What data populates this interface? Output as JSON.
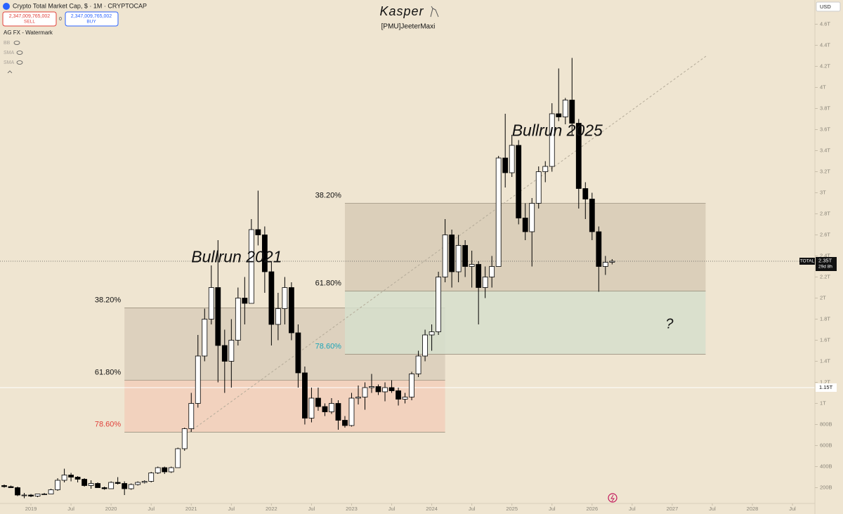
{
  "chart_data": {
    "type": "candlestick",
    "header": {
      "title": "Crypto Total Market Cap, $ · 1M · CRYPTOCAP",
      "sell_price": "2,347,009,765,002",
      "sell": "SELL",
      "spread": "0",
      "buy_price": "2,347,009,765,002",
      "buy": "BUY",
      "currency": "USD"
    },
    "indicators": [
      "AG FX - Watermark",
      "BB",
      "SMA",
      "SMA"
    ],
    "watermark": {
      "title": "Kasper",
      "subtitle": "[PMU]JeeterMaxi"
    },
    "annotations": [
      {
        "text": "Bullrun 2021",
        "x": "2021-01",
        "value": 2.38
      },
      {
        "text": "Bullrun 2025",
        "x": "2025-01",
        "value": 3.58
      },
      {
        "text": "?",
        "x": "2026-12",
        "value": 1.75
      }
    ],
    "up_color": "#ffffff",
    "down_color": "#000000",
    "x": [
      "2018-09",
      "2018-10",
      "2018-11",
      "2018-12",
      "2019-01",
      "2019-02",
      "2019-03",
      "2019-04",
      "2019-05",
      "2019-06",
      "2019-07",
      "2019-08",
      "2019-09",
      "2019-10",
      "2019-11",
      "2019-12",
      "2020-01",
      "2020-02",
      "2020-03",
      "2020-04",
      "2020-05",
      "2020-06",
      "2020-07",
      "2020-08",
      "2020-09",
      "2020-10",
      "2020-11",
      "2020-12",
      "2021-01",
      "2021-02",
      "2021-03",
      "2021-04",
      "2021-05",
      "2021-06",
      "2021-07",
      "2021-08",
      "2021-09",
      "2021-10",
      "2021-11",
      "2021-12",
      "2022-01",
      "2022-02",
      "2022-03",
      "2022-04",
      "2022-05",
      "2022-06",
      "2022-07",
      "2022-08",
      "2022-09",
      "2022-10",
      "2022-11",
      "2022-12",
      "2023-01",
      "2023-02",
      "2023-03",
      "2023-04",
      "2023-05",
      "2023-06",
      "2023-07",
      "2023-08",
      "2023-09",
      "2023-10",
      "2023-11",
      "2023-12",
      "2024-01",
      "2024-02",
      "2024-03",
      "2024-04",
      "2024-05",
      "2024-06",
      "2024-07",
      "2024-08",
      "2024-09",
      "2024-10",
      "2024-11",
      "2024-12",
      "2025-01",
      "2025-02",
      "2025-03",
      "2025-04",
      "2025-05",
      "2025-06",
      "2025-07",
      "2025-08",
      "2025-09",
      "2025-10",
      "2025-11",
      "2025-12",
      "2026-01",
      "2026-02",
      "2026-03",
      "2026-04"
    ],
    "ohlc": [
      [
        0.22,
        0.23,
        0.2,
        0.21
      ],
      [
        0.21,
        0.22,
        0.2,
        0.2
      ],
      [
        0.2,
        0.21,
        0.12,
        0.13
      ],
      [
        0.13,
        0.15,
        0.1,
        0.13
      ],
      [
        0.13,
        0.14,
        0.11,
        0.12
      ],
      [
        0.12,
        0.14,
        0.11,
        0.14
      ],
      [
        0.14,
        0.15,
        0.13,
        0.14
      ],
      [
        0.14,
        0.19,
        0.14,
        0.18
      ],
      [
        0.18,
        0.29,
        0.17,
        0.27
      ],
      [
        0.27,
        0.38,
        0.25,
        0.32
      ],
      [
        0.32,
        0.34,
        0.26,
        0.3
      ],
      [
        0.3,
        0.31,
        0.25,
        0.28
      ],
      [
        0.28,
        0.29,
        0.21,
        0.22
      ],
      [
        0.22,
        0.27,
        0.19,
        0.24
      ],
      [
        0.24,
        0.25,
        0.2,
        0.2
      ],
      [
        0.2,
        0.21,
        0.18,
        0.19
      ],
      [
        0.19,
        0.26,
        0.19,
        0.25
      ],
      [
        0.25,
        0.3,
        0.23,
        0.24
      ],
      [
        0.24,
        0.26,
        0.13,
        0.19
      ],
      [
        0.19,
        0.24,
        0.18,
        0.23
      ],
      [
        0.23,
        0.26,
        0.22,
        0.25
      ],
      [
        0.25,
        0.27,
        0.24,
        0.26
      ],
      [
        0.26,
        0.35,
        0.25,
        0.34
      ],
      [
        0.34,
        0.4,
        0.33,
        0.39
      ],
      [
        0.39,
        0.4,
        0.33,
        0.35
      ],
      [
        0.35,
        0.4,
        0.34,
        0.39
      ],
      [
        0.39,
        0.58,
        0.39,
        0.57
      ],
      [
        0.57,
        0.77,
        0.55,
        0.76
      ],
      [
        0.76,
        1.1,
        0.73,
        1.0
      ],
      [
        1.0,
        1.65,
        0.96,
        1.45
      ],
      [
        1.45,
        1.9,
        1.4,
        1.8
      ],
      [
        1.8,
        2.31,
        1.75,
        2.1
      ],
      [
        2.1,
        2.55,
        1.2,
        1.55
      ],
      [
        1.55,
        1.7,
        1.1,
        1.4
      ],
      [
        1.4,
        1.8,
        1.15,
        1.6
      ],
      [
        1.6,
        2.1,
        1.55,
        2.0
      ],
      [
        2.0,
        2.2,
        1.75,
        1.95
      ],
      [
        1.95,
        2.75,
        1.95,
        2.65
      ],
      [
        2.65,
        3.02,
        2.5,
        2.6
      ],
      [
        2.6,
        2.68,
        2.05,
        2.25
      ],
      [
        2.25,
        2.35,
        1.55,
        1.75
      ],
      [
        1.75,
        2.05,
        1.6,
        1.9
      ],
      [
        1.9,
        2.2,
        1.75,
        2.1
      ],
      [
        2.1,
        2.15,
        1.6,
        1.67
      ],
      [
        1.67,
        1.75,
        1.15,
        1.29
      ],
      [
        1.29,
        1.35,
        0.8,
        0.86
      ],
      [
        0.86,
        1.15,
        0.82,
        1.05
      ],
      [
        1.05,
        1.15,
        0.93,
        0.97
      ],
      [
        0.97,
        1.0,
        0.88,
        0.92
      ],
      [
        0.92,
        1.05,
        0.9,
        1.0
      ],
      [
        1.0,
        1.03,
        0.75,
        0.84
      ],
      [
        0.84,
        0.88,
        0.77,
        0.79
      ],
      [
        0.79,
        1.1,
        0.78,
        1.05
      ],
      [
        1.05,
        1.17,
        0.99,
        1.06
      ],
      [
        1.06,
        1.2,
        0.94,
        1.15
      ],
      [
        1.15,
        1.28,
        1.1,
        1.16
      ],
      [
        1.16,
        1.18,
        1.08,
        1.11
      ],
      [
        1.11,
        1.2,
        1.02,
        1.15
      ],
      [
        1.15,
        1.22,
        1.1,
        1.12
      ],
      [
        1.12,
        1.15,
        0.98,
        1.04
      ],
      [
        1.04,
        1.1,
        1.0,
        1.06
      ],
      [
        1.06,
        1.3,
        1.03,
        1.28
      ],
      [
        1.28,
        1.5,
        1.25,
        1.45
      ],
      [
        1.45,
        1.7,
        1.4,
        1.65
      ],
      [
        1.65,
        1.75,
        1.5,
        1.68
      ],
      [
        1.68,
        2.25,
        1.65,
        2.2
      ],
      [
        2.2,
        2.75,
        2.15,
        2.6
      ],
      [
        2.6,
        2.65,
        2.1,
        2.25
      ],
      [
        2.25,
        2.6,
        2.15,
        2.5
      ],
      [
        2.5,
        2.55,
        2.2,
        2.3
      ],
      [
        2.3,
        2.45,
        2.1,
        2.32
      ],
      [
        2.32,
        2.35,
        1.75,
        2.1
      ],
      [
        2.1,
        2.3,
        2.0,
        2.2
      ],
      [
        2.2,
        2.4,
        2.1,
        2.3
      ],
      [
        2.3,
        3.35,
        2.3,
        3.33
      ],
      [
        3.33,
        3.75,
        3.05,
        3.19
      ],
      [
        3.19,
        3.55,
        3.15,
        3.45
      ],
      [
        3.45,
        3.5,
        2.7,
        2.76
      ],
      [
        2.76,
        2.9,
        2.55,
        2.63
      ],
      [
        2.63,
        2.95,
        2.3,
        2.9
      ],
      [
        2.9,
        3.25,
        2.85,
        3.2
      ],
      [
        3.2,
        3.3,
        3.1,
        3.25
      ],
      [
        3.25,
        3.85,
        3.2,
        3.75
      ],
      [
        3.75,
        4.18,
        3.68,
        3.72
      ],
      [
        3.72,
        3.9,
        3.65,
        3.88
      ],
      [
        3.88,
        4.28,
        3.55,
        3.66
      ],
      [
        3.66,
        3.7,
        2.85,
        3.04
      ],
      [
        3.04,
        3.1,
        2.75,
        2.94
      ],
      [
        2.94,
        3.0,
        2.55,
        2.63
      ],
      [
        2.63,
        2.68,
        2.06,
        2.3
      ],
      [
        2.3,
        2.4,
        2.22,
        2.34
      ],
      [
        2.34,
        2.37,
        2.32,
        2.35
      ]
    ],
    "zones": [
      {
        "start": "2020-03",
        "end": "2024-03",
        "fills": [
          "#d9cebb",
          "#f2cfbb"
        ],
        "label_color": "#e0413a",
        "levels": [
          {
            "label": "38.20%",
            "value": 1.907
          },
          {
            "label": "61.80%",
            "value": 1.22
          },
          {
            "label": "78.60%",
            "value": 0.727
          }
        ]
      },
      {
        "start": "2022-12",
        "end": "2027-06",
        "fills": [
          "#d7cbb6",
          "#d6dfcc"
        ],
        "label_color": "#1aa5b8",
        "levels": [
          {
            "label": "38.20%",
            "value": 2.9
          },
          {
            "label": "61.80%",
            "value": 2.067
          },
          {
            "label": "78.60%",
            "value": 1.467
          }
        ]
      }
    ],
    "last_price": {
      "name": "TOTAL",
      "value": 2.35,
      "label": "2.35T",
      "countdown": "29d 8h"
    },
    "crosshair": {
      "value": 1.15,
      "label": "1.15T"
    },
    "xlim": [
      "2018-08",
      "2028-10"
    ],
    "xticks": [
      {
        "value": "2019-01",
        "label": "2019"
      },
      {
        "value": "2019-07",
        "label": "Jul"
      },
      {
        "value": "2020-01",
        "label": "2020"
      },
      {
        "value": "2020-07",
        "label": "Jul"
      },
      {
        "value": "2021-01",
        "label": "2021"
      },
      {
        "value": "2021-07",
        "label": "Jul"
      },
      {
        "value": "2022-01",
        "label": "2022"
      },
      {
        "value": "2022-07",
        "label": "Jul"
      },
      {
        "value": "2023-01",
        "label": "2023"
      },
      {
        "value": "2023-07",
        "label": "Jul"
      },
      {
        "value": "2024-01",
        "label": "2024"
      },
      {
        "value": "2024-07",
        "label": "Jul"
      },
      {
        "value": "2025-01",
        "label": "2025"
      },
      {
        "value": "2025-07",
        "label": "Jul"
      },
      {
        "value": "2026-01",
        "label": "2026"
      },
      {
        "value": "2026-07",
        "label": "Jul"
      },
      {
        "value": "2027-01",
        "label": "2027"
      },
      {
        "value": "2027-07",
        "label": "Jul"
      },
      {
        "value": "2028-01",
        "label": "2028"
      },
      {
        "value": "2028-07",
        "label": "Jul"
      }
    ],
    "ylim": [
      0.05,
      4.83
    ],
    "yticks": [
      {
        "value": 0.2,
        "label": "200B"
      },
      {
        "value": 0.4,
        "label": "400B"
      },
      {
        "value": 0.6,
        "label": "600B"
      },
      {
        "value": 0.8,
        "label": "800B"
      },
      {
        "value": 1,
        "label": "1T"
      },
      {
        "value": 1.2,
        "label": "1.2T"
      },
      {
        "value": 1.4,
        "label": "1.4T"
      },
      {
        "value": 1.6,
        "label": "1.6T"
      },
      {
        "value": 1.8,
        "label": "1.8T"
      },
      {
        "value": 2,
        "label": "2T"
      },
      {
        "value": 2.2,
        "label": "2.2T"
      },
      {
        "value": 2.4,
        "label": "2.4T"
      },
      {
        "value": 2.6,
        "label": "2.6T"
      },
      {
        "value": 2.8,
        "label": "2.8T"
      },
      {
        "value": 3,
        "label": "3T"
      },
      {
        "value": 3.2,
        "label": "3.2T"
      },
      {
        "value": 3.4,
        "label": "3.4T"
      },
      {
        "value": 3.6,
        "label": "3.6T"
      },
      {
        "value": 3.8,
        "label": "3.8T"
      },
      {
        "value": 4,
        "label": "4T"
      },
      {
        "value": 4.2,
        "label": "4.2T"
      },
      {
        "value": 4.4,
        "label": "4.4T"
      },
      {
        "value": 4.6,
        "label": "4.6T"
      }
    ]
  }
}
